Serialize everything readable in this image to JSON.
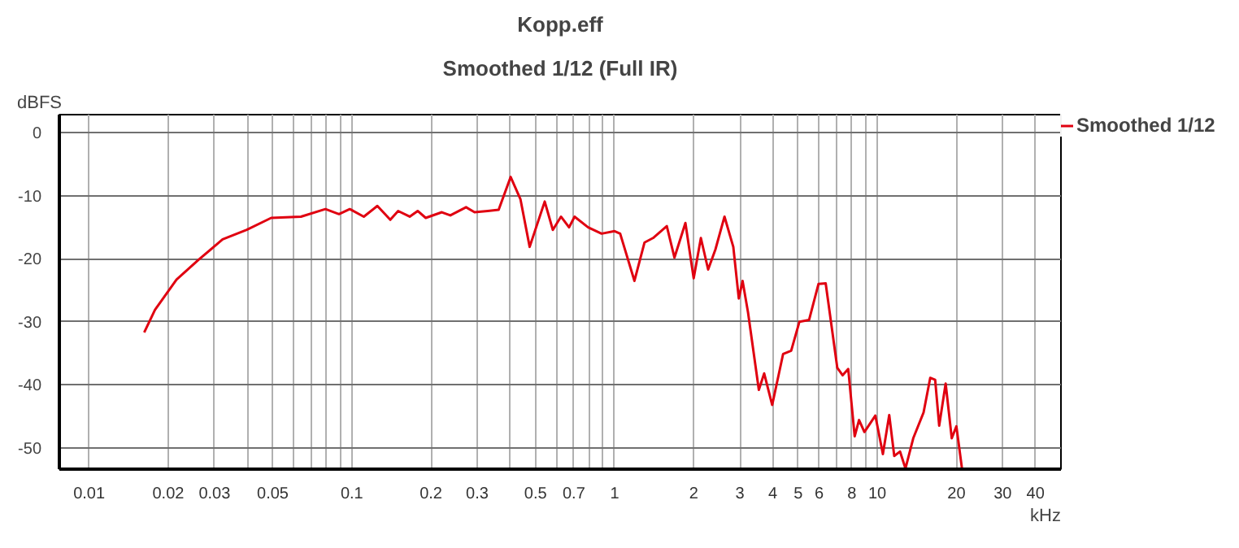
{
  "chart_data": {
    "type": "line",
    "title": "Kopp.eff",
    "subtitle": "Smoothed 1/12 (Full IR)",
    "xlabel": "kHz",
    "ylabel": "dBFS",
    "log": "x",
    "xlim": [
      0.0077,
      50
    ],
    "ylim": [
      -53.4,
      2.9
    ],
    "xticks": [
      0.01,
      0.02,
      0.03,
      {
        "value": 0.04,
        "label": null
      },
      0.05,
      {
        "value": 0.06,
        "label": null
      },
      {
        "value": 0.07,
        "label": null
      },
      {
        "value": 0.08,
        "label": null
      },
      {
        "value": 0.09,
        "label": null
      },
      0.1,
      0.2,
      0.3,
      {
        "value": 0.4,
        "label": null
      },
      0.5,
      {
        "value": 0.6,
        "label": null
      },
      0.7,
      {
        "value": 0.8,
        "label": null
      },
      {
        "value": 0.9,
        "label": null
      },
      1,
      2,
      3,
      4,
      5,
      6,
      {
        "value": 7,
        "label": null
      },
      8,
      {
        "value": 9,
        "label": null
      },
      10,
      20,
      30,
      40
    ],
    "yticks": [
      0,
      -10,
      -20,
      -30,
      -40,
      -50
    ],
    "grid": true,
    "legend": "top right",
    "marker": "none",
    "line_style": "solid",
    "series": [
      {
        "name": "Smoothed 1/12",
        "color": "#e00010",
        "x": [
          0.0162,
          0.0178,
          0.0215,
          0.026,
          0.0322,
          0.0398,
          0.0493,
          0.064,
          0.0793,
          0.0893,
          0.0982,
          0.111,
          0.125,
          0.14,
          0.15,
          0.166,
          0.178,
          0.191,
          0.22,
          0.237,
          0.272,
          0.293,
          0.329,
          0.362,
          0.402,
          0.438,
          0.475,
          0.542,
          0.582,
          0.625,
          0.671,
          0.704,
          0.793,
          0.892,
          1.0,
          1.05,
          1.19,
          1.3,
          1.4,
          1.58,
          1.69,
          1.86,
          2.0,
          2.13,
          2.27,
          2.42,
          2.62,
          2.83,
          2.97,
          3.07,
          3.22,
          3.54,
          3.71,
          3.98,
          4.38,
          4.7,
          5.05,
          5.5,
          5.97,
          6.36,
          7.04,
          7.38,
          7.75,
          8.2,
          8.52,
          8.93,
          9.83,
          10.5,
          11.1,
          11.6,
          12.2,
          12.8,
          13.7,
          15.0,
          15.9,
          16.6,
          17.2,
          18.2,
          19.2,
          20.0,
          21.0
        ],
        "values": [
          -31.7,
          -28.1,
          -23.3,
          -20.2,
          -16.9,
          -15.4,
          -13.5,
          -13.3,
          -12.1,
          -12.9,
          -12.1,
          -13.3,
          -11.6,
          -13.8,
          -12.4,
          -13.3,
          -12.4,
          -13.5,
          -12.6,
          -13.1,
          -11.8,
          -12.6,
          -12.4,
          -12.2,
          -7.0,
          -10.5,
          -18.1,
          -10.9,
          -15.4,
          -13.3,
          -15.0,
          -13.3,
          -15.0,
          -16.0,
          -15.6,
          -16.0,
          -23.5,
          -17.4,
          -16.7,
          -14.8,
          -19.8,
          -14.3,
          -23.1,
          -16.7,
          -21.7,
          -18.5,
          -13.3,
          -18.1,
          -26.3,
          -23.5,
          -28.5,
          -40.8,
          -38.2,
          -43.2,
          -35.1,
          -34.6,
          -30.0,
          -29.7,
          -24.0,
          -23.9,
          -37.3,
          -38.5,
          -37.5,
          -48.2,
          -45.6,
          -47.5,
          -44.9,
          -51.0,
          -44.8,
          -51.3,
          -50.6,
          -53.3,
          -48.5,
          -44.4,
          -38.9,
          -39.2,
          -46.5,
          -39.8,
          -48.5,
          -46.6,
          -53.3
        ]
      }
    ]
  }
}
